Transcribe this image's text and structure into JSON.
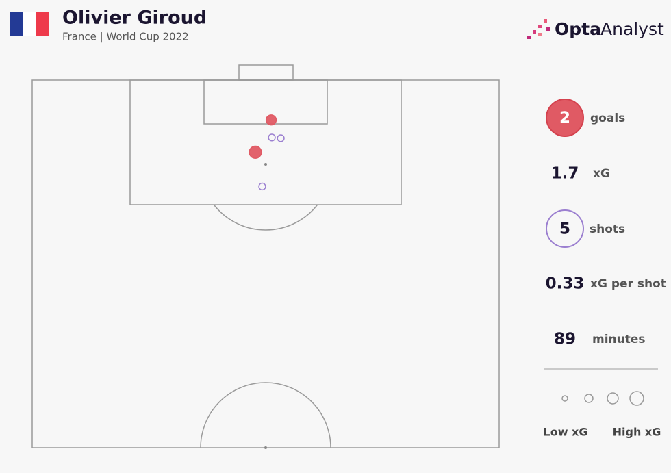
{
  "chart_data": {
    "type": "scatter",
    "title": "Olivier Giroud",
    "subtitle": "France | World Cup 2022",
    "xlim": [
      0,
      68
    ],
    "ylim": [
      0,
      52.5
    ],
    "series": [
      {
        "color": "#e05a64",
        "filled": true,
        "x": [
          34.8,
          32.5
        ],
        "values": [
          5.7,
          10.3
        ],
        "sizes": [
          0.45,
          0.65
        ]
      },
      {
        "color": "#9b7fd0",
        "filled": false,
        "x": [
          34.9,
          36.2,
          33.5
        ],
        "values": [
          8.2,
          8.3,
          15.2
        ],
        "sizes": [
          0.2,
          0.2,
          0.2
        ]
      }
    ]
  },
  "brand": [
    "Opta",
    "Analyst"
  ],
  "stats": [
    {
      "value": 2,
      "label": "goals"
    },
    {
      "value": 1.7,
      "label": "xG"
    },
    {
      "value": 5,
      "label": "shots"
    },
    {
      "value": 0.33,
      "label": "xG per shot"
    },
    {
      "value": 89,
      "label": "minutes"
    }
  ],
  "legend": [
    "Low xG",
    "High xG"
  ]
}
